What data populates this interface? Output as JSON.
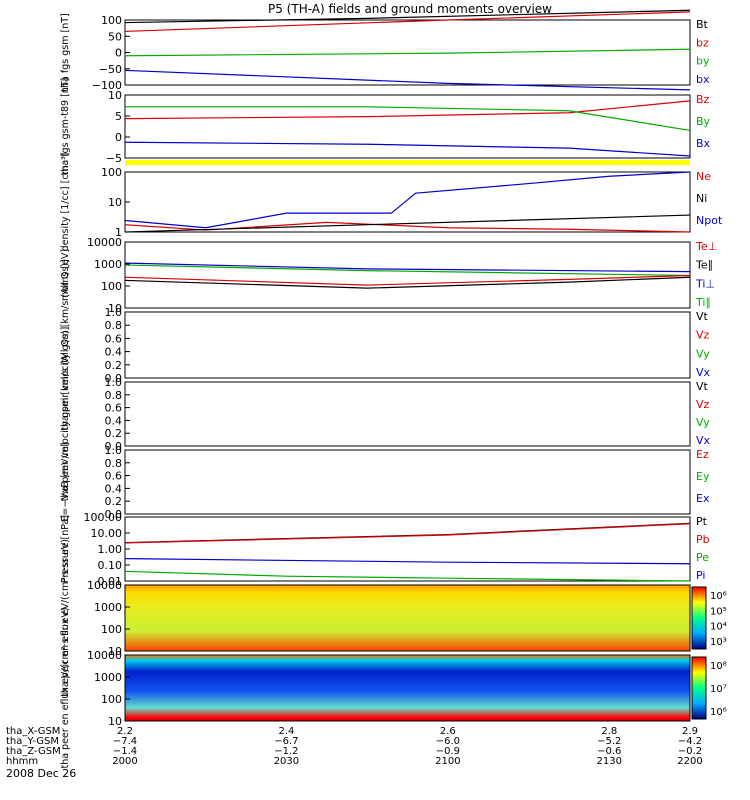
{
  "title": "P5 (TH-A) fields and ground moments overview",
  "date": "2008 Dec 26",
  "colors": {
    "black": "#000000",
    "red": "#dd0000",
    "green": "#00cc00",
    "blue": "#0000cc",
    "yellow": "#ffff00"
  },
  "chart_data": [
    {
      "type": "line",
      "ylabel": "tha fgs gsm [nT]",
      "yticks": [
        "100",
        "50",
        "0",
        "−50",
        "−100"
      ],
      "legend": [
        {
          "name": "Bt",
          "color": "#000000"
        },
        {
          "name": "bz",
          "color": "#dd0000"
        },
        {
          "name": "by",
          "color": "#00aa00"
        },
        {
          "name": "bx",
          "color": "#0000cc"
        }
      ],
      "series": [
        {
          "name": "Bt",
          "x": [
            2.2,
            2.5,
            2.9
          ],
          "y": [
            92,
            105,
            130
          ]
        },
        {
          "name": "bz",
          "x": [
            2.2,
            2.6,
            2.9
          ],
          "y": [
            65,
            100,
            125
          ]
        },
        {
          "name": "by",
          "x": [
            2.2,
            2.6,
            2.9
          ],
          "y": [
            -10,
            -2,
            10
          ]
        },
        {
          "name": "bx",
          "x": [
            2.2,
            2.6,
            2.9
          ],
          "y": [
            -55,
            -95,
            -115
          ]
        }
      ]
    },
    {
      "type": "line",
      "ylabel": "tha fgs gsm-t89 [nT]",
      "yticks": [
        "10",
        "5",
        "0",
        "−5"
      ],
      "legend": [
        {
          "name": "Bz",
          "color": "#dd0000"
        },
        {
          "name": "By",
          "color": "#00aa00"
        },
        {
          "name": "Bx",
          "color": "#0000cc"
        }
      ],
      "series": [
        {
          "name": "Bz",
          "x": [
            2.2,
            2.5,
            2.75,
            2.9
          ],
          "y": [
            4,
            4.5,
            5.5,
            8.5
          ]
        },
        {
          "name": "By",
          "x": [
            2.2,
            2.5,
            2.75,
            2.9
          ],
          "y": [
            7,
            7,
            6,
            1
          ]
        },
        {
          "name": "Bx",
          "x": [
            2.2,
            2.5,
            2.75,
            2.9
          ],
          "y": [
            -2,
            -2.5,
            -3.5,
            -5.5
          ]
        }
      ]
    },
    {
      "type": "line",
      "ylabel": "density [1/cc] [cm⁻³]",
      "yscale": "log",
      "yticks": [
        "100",
        "10",
        "1"
      ],
      "legend": [
        {
          "name": "Ne",
          "color": "#dd0000"
        },
        {
          "name": "Ni",
          "color": "#000000"
        },
        {
          "name": "Npot",
          "color": "#0000cc"
        }
      ],
      "series": [
        {
          "name": "Ne",
          "x": [
            2.2,
            2.3,
            2.45,
            2.6,
            2.75,
            2.9
          ],
          "y": [
            2,
            1.2,
            2.5,
            1.5,
            1.3,
            1
          ]
        },
        {
          "name": "Ni",
          "x": [
            2.2,
            2.5,
            2.9
          ],
          "y": [
            1,
            2,
            5
          ]
        },
        {
          "name": "Npot",
          "x": [
            2.2,
            2.3,
            2.4,
            2.53,
            2.56,
            2.7,
            2.8,
            2.9
          ],
          "y": [
            3,
            1.5,
            6,
            6,
            40,
            100,
            200,
            300
          ]
        }
      ]
    },
    {
      "type": "line",
      "ylabel": "moms [eV]",
      "yscale": "log",
      "yticks": [
        "10000",
        "1000",
        "100",
        "10"
      ],
      "legend": [
        {
          "name": "Te⊥",
          "color": "#dd0000"
        },
        {
          "name": "Te∥",
          "color": "#000000"
        },
        {
          "name": "Ti⊥",
          "color": "#0000cc"
        },
        {
          "name": "Ti∥",
          "color": "#00aa00"
        }
      ],
      "series": [
        {
          "name": "Ti⊥",
          "x": [
            2.2,
            2.5,
            2.9
          ],
          "y": [
            1100,
            600,
            450
          ]
        },
        {
          "name": "Ti∥",
          "x": [
            2.2,
            2.5,
            2.9
          ],
          "y": [
            900,
            500,
            300
          ]
        },
        {
          "name": "Te⊥",
          "x": [
            2.2,
            2.5,
            2.75,
            2.9
          ],
          "y": [
            250,
            110,
            200,
            300
          ]
        },
        {
          "name": "Te∥",
          "x": [
            2.2,
            2.5,
            2.75,
            2.9
          ],
          "y": [
            180,
            80,
            150,
            250
          ]
        }
      ]
    },
    {
      "type": "line",
      "ylabel": "tha peir velocity gsm [km/s (All Qs)]",
      "yticks": [
        "1.0",
        "0.8",
        "0.6",
        "0.4",
        "0.2",
        "0.0"
      ],
      "legend": [
        {
          "name": "Vt",
          "color": "#000000"
        },
        {
          "name": "Vz",
          "color": "#dd0000"
        },
        {
          "name": "Vy",
          "color": "#00aa00"
        },
        {
          "name": "Vx",
          "color": "#0000cc"
        }
      ],
      "series": []
    },
    {
      "type": "line",
      "ylabel": "tha peer velocity gsm [km/s (All Qs)]",
      "yticks": [
        "1.0",
        "0.8",
        "0.6",
        "0.4",
        "0.2",
        "0.0"
      ],
      "legend": [
        {
          "name": "Vt",
          "color": "#000000"
        },
        {
          "name": "Vz",
          "color": "#dd0000"
        },
        {
          "name": "Vy",
          "color": "#00aa00"
        },
        {
          "name": "Vx",
          "color": "#0000cc"
        }
      ],
      "series": []
    },
    {
      "type": "line",
      "ylabel": "E=−VxB [mV/m]",
      "yticks": [
        "1.0",
        "0.8",
        "0.6",
        "0.4",
        "0.2",
        "0.0"
      ],
      "legend": [
        {
          "name": "Ez",
          "color": "#dd0000"
        },
        {
          "name": "Ey",
          "color": "#00aa00"
        },
        {
          "name": "Ex",
          "color": "#0000cc"
        }
      ],
      "series": []
    },
    {
      "type": "line",
      "ylabel": "Pressure [nPa]",
      "yscale": "log",
      "yticks": [
        "100.00",
        "10.00",
        "1.00",
        "0.10",
        "0.01"
      ],
      "legend": [
        {
          "name": "Pt",
          "color": "#000000"
        },
        {
          "name": "Pb",
          "color": "#dd0000"
        },
        {
          "name": "Pe",
          "color": "#00aa00"
        },
        {
          "name": "Pi",
          "color": "#0000cc"
        }
      ],
      "series": [
        {
          "name": "Pt",
          "x": [
            2.2,
            2.6,
            2.9
          ],
          "y": [
            2.5,
            8,
            40
          ]
        },
        {
          "name": "Pb",
          "x": [
            2.2,
            2.6,
            2.9
          ],
          "y": [
            2.4,
            7.5,
            38
          ]
        },
        {
          "name": "Pi",
          "x": [
            2.2,
            2.6,
            2.9
          ],
          "y": [
            0.25,
            0.15,
            0.12
          ]
        },
        {
          "name": "Pe",
          "x": [
            2.2,
            2.4,
            2.6,
            2.9
          ],
          "y": [
            0.04,
            0.02,
            0.015,
            0.01
          ]
        }
      ]
    },
    {
      "type": "heatmap",
      "ylabel": "tha peir en eflux eV/(cm²·s·sr·eV)",
      "yscale": "log",
      "yticks": [
        "10000",
        "1000",
        "100",
        "10"
      ],
      "colorbar_ticks": [
        "10⁶",
        "10⁵",
        "10⁴",
        "10³"
      ]
    },
    {
      "type": "heatmap",
      "ylabel": "tha peer en eflux eV/(cm²·s·sr·eV)",
      "yscale": "log",
      "yticks": [
        "10000",
        "1000",
        "100",
        "10"
      ],
      "colorbar_ticks": [
        "10⁸",
        "10⁷",
        "10⁶"
      ]
    }
  ],
  "xaxis": {
    "rows": [
      {
        "label": "tha_X-GSM",
        "values": [
          "2.2",
          "2.4",
          "2.6",
          "2.8",
          "2.9"
        ]
      },
      {
        "label": "tha_Y-GSM",
        "values": [
          "−7.4",
          "−6.7",
          "−6.0",
          "−5.2",
          "−4.2"
        ]
      },
      {
        "label": "tha_Z-GSM",
        "values": [
          "−1.4",
          "−1.2",
          "−0.9",
          "−0.6",
          "−0.2"
        ]
      },
      {
        "label": "hhmm",
        "values": [
          "2000",
          "2030",
          "2100",
          "2130",
          "2200"
        ]
      }
    ]
  }
}
